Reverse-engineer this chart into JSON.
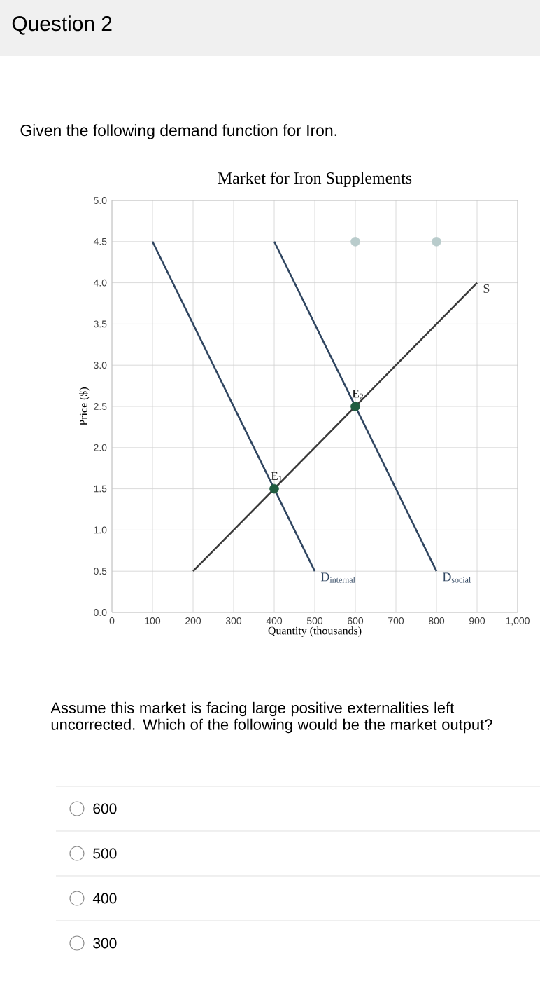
{
  "chart_data": {
    "type": "line",
    "title": "Market for Iron Supplements",
    "xlabel": "Quantity (thousands)",
    "ylabel": "Price ($)",
    "xlim": [
      0,
      1000
    ],
    "ylim": [
      0,
      5
    ],
    "xticks": [
      0,
      100,
      200,
      300,
      400,
      500,
      600,
      700,
      800,
      900,
      {
        "value": 1000,
        "label": "1,000"
      }
    ],
    "yticks": [
      {
        "value": 0,
        "label": "0.0"
      },
      {
        "value": 0.5,
        "label": "0.5"
      },
      {
        "value": 1,
        "label": "1.0"
      },
      {
        "value": 1.5,
        "label": "1.5"
      },
      {
        "value": 2,
        "label": "2.0"
      },
      {
        "value": 2.5,
        "label": "2.5"
      },
      {
        "value": 3,
        "label": "3.0"
      },
      {
        "value": 3.5,
        "label": "3.5"
      },
      {
        "value": 4,
        "label": "4.0"
      },
      {
        "value": 4.5,
        "label": "4.5"
      },
      {
        "value": 5,
        "label": "5.0"
      }
    ],
    "grid": true,
    "line_style": "solid",
    "marker": "none",
    "series": [
      {
        "name": "D$_{internal}$",
        "color": "#2f4560",
        "x": [
          100,
          500
        ],
        "values": [
          4.5,
          0.5
        ]
      },
      {
        "name": "D$_{social}$",
        "color": "#2f4560",
        "x": [
          400,
          800
        ],
        "values": [
          4.5,
          0.5
        ]
      },
      {
        "name": "S",
        "color": "#3a3a3a",
        "x": [
          200,
          900
        ],
        "values": [
          0.5,
          4.0
        ]
      },
      {
        "type": "scatter",
        "marker": "circle",
        "color": "#1f5c40",
        "x": [
          400,
          600
        ],
        "values": [
          1.5,
          2.5
        ]
      },
      {
        "type": "scatter",
        "marker": "circle",
        "color": "#b9cccc",
        "x": [
          600,
          800
        ],
        "values": [
          4.5,
          4.5
        ]
      }
    ],
    "annotations": [
      "Question 2",
      "Given the following demand function for Iron.",
      "Assume this market is facing large positive externalities left uncorrected. Which of the following would be the market output?",
      "600",
      "500",
      "400",
      "300",
      {
        "text": "E$_{1}$",
        "x": 400,
        "y": 1.5
      },
      {
        "text": "E$_{2}$",
        "x": 600,
        "y": 2.5
      }
    ]
  }
}
